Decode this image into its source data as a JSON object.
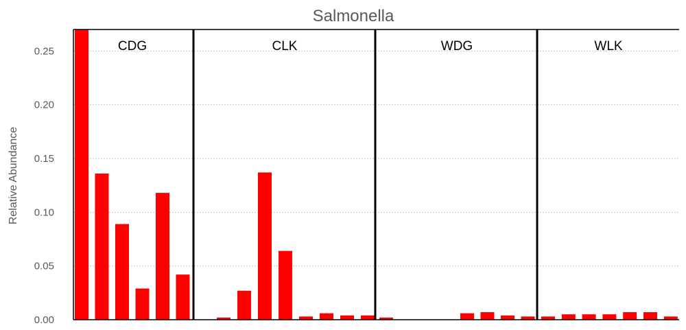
{
  "chart_data": {
    "type": "bar",
    "title": "Salmonella",
    "xlabel": "",
    "ylabel": "Relative Abundance",
    "ylim": [
      0,
      0.27
    ],
    "yticks": [
      "0.00",
      "0.05",
      "0.10",
      "0.15",
      "0.20",
      "0.25"
    ],
    "grid": true,
    "legend": "none",
    "bar_color": "#ff0000",
    "groups": [
      {
        "label": "CDG",
        "values": [
          0.27,
          0.136,
          0.089,
          0.029,
          0.118,
          0.042
        ]
      },
      {
        "label": "CLK",
        "values": [
          0.0,
          0.002,
          0.027,
          0.137,
          0.064,
          0.003,
          0.006,
          0.004,
          0.004
        ]
      },
      {
        "label": "WDG",
        "values": [
          0.002,
          0.0,
          0.0,
          0.0,
          0.006,
          0.007,
          0.004,
          0.003
        ]
      },
      {
        "label": "WLK",
        "values": [
          0.003,
          0.005,
          0.005,
          0.005,
          0.007,
          0.007,
          0.003
        ]
      }
    ]
  }
}
